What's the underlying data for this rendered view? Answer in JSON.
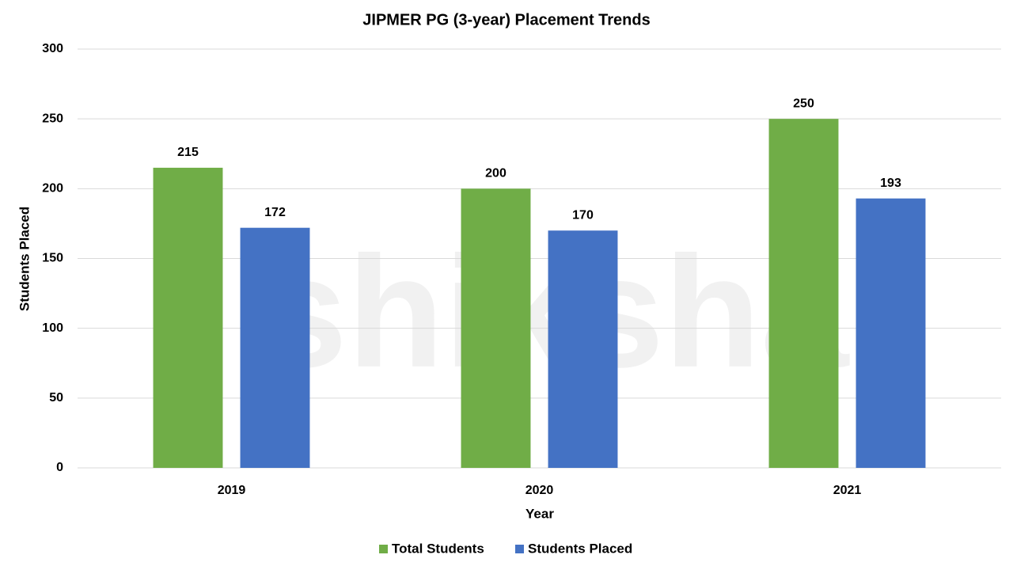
{
  "chart_data": {
    "type": "bar",
    "title": "JIPMER PG (3-year) Placement Trends",
    "watermark": "shiksha",
    "x_label": "Year",
    "y_label": "Students Placed",
    "categories": [
      "2019",
      "2020",
      "2021"
    ],
    "series": [
      {
        "name": "Total Students",
        "color": "#70ad47",
        "values": [
          215,
          200,
          250
        ]
      },
      {
        "name": "Students Placed",
        "color": "#4472c4",
        "values": [
          172,
          170,
          193
        ]
      }
    ],
    "ylim": [
      0,
      300
    ],
    "yticks": [
      0,
      50,
      100,
      150,
      200,
      250,
      300
    ],
    "grid": true,
    "legend": "bottom"
  }
}
